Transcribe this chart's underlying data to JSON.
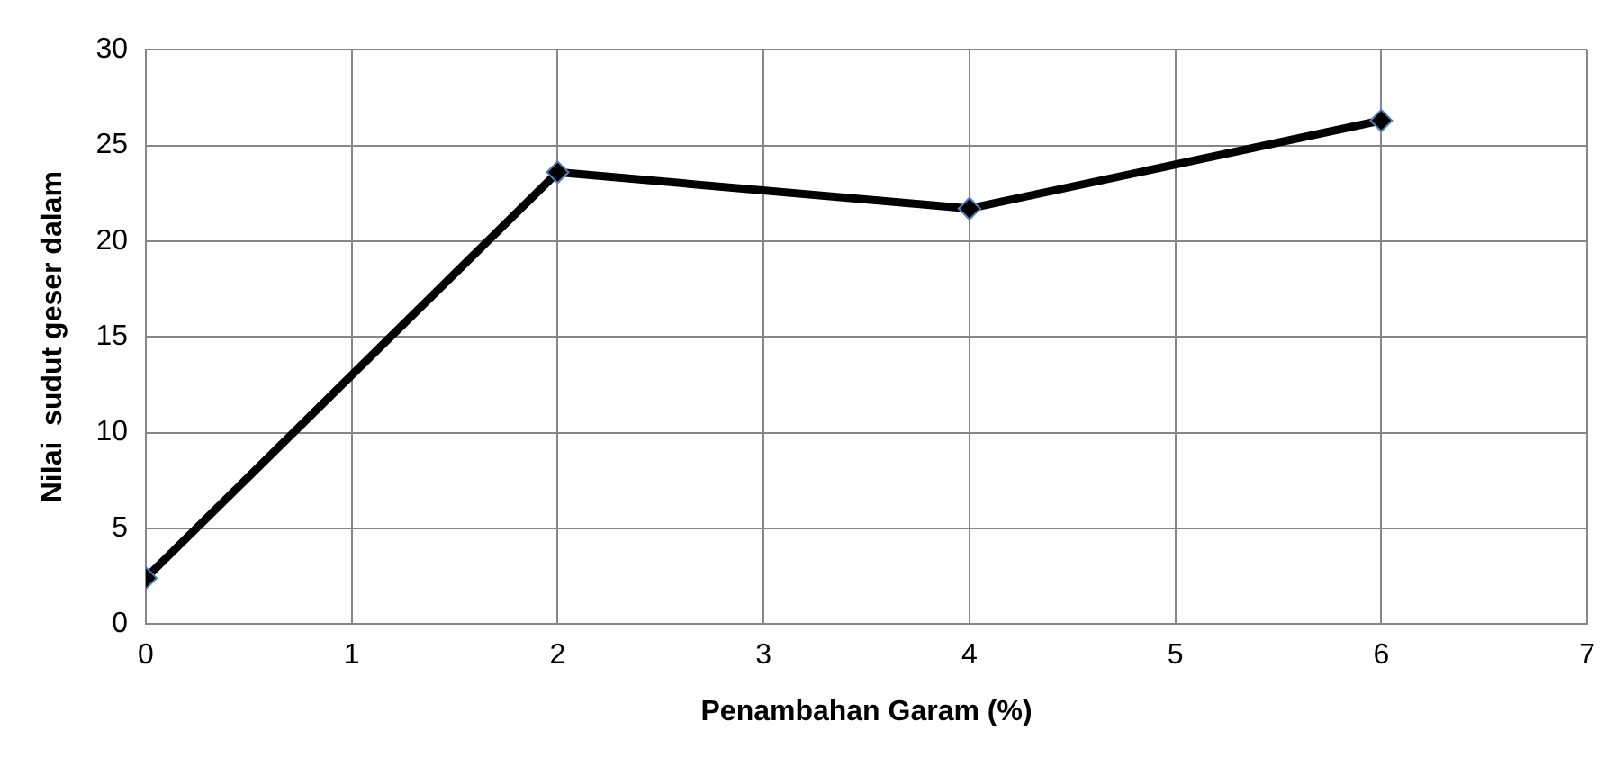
{
  "chart_data": {
    "type": "line",
    "xlabel": "Penambahan Garam (%)",
    "ylabel": "Nilai  sudut geser dalam",
    "x": [
      0,
      2,
      4,
      6
    ],
    "series": [
      {
        "color": "#000000",
        "values": [
          2.4,
          23.6,
          21.7,
          26.3
        ]
      }
    ],
    "xlim": [
      0,
      7
    ],
    "xticks": [
      0,
      1,
      2,
      3,
      4,
      5,
      6,
      7
    ],
    "ylim": [
      0,
      30
    ],
    "yticks": [
      0,
      5,
      10,
      15,
      20,
      25,
      30
    ],
    "grid": true,
    "legend": false,
    "marker": "diamond",
    "line_style": "solid"
  }
}
